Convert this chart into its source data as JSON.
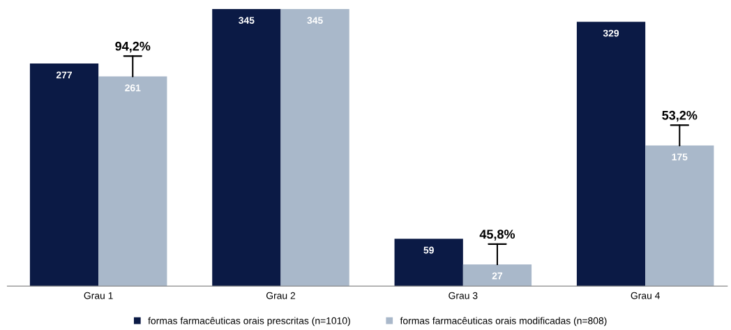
{
  "chart_data": {
    "type": "bar",
    "categories": [
      "Grau 1",
      "Grau 2",
      "Grau 3",
      "Grau 4"
    ],
    "series": [
      {
        "name": "formas farmacêuticas orais prescritas (n=1010)",
        "color": "#0b1a45",
        "values": [
          277,
          345,
          59,
          329
        ]
      },
      {
        "name": "formas farmacêuticas orais modificadas (n=808)",
        "color": "#a9b8ca",
        "values": [
          261,
          345,
          27,
          175
        ]
      }
    ],
    "data_labels": true,
    "annotations": [
      {
        "text": "94,2%",
        "x": "Grau 1",
        "y": 261
      },
      {
        "text": "45,8%",
        "x": "Grau 3",
        "y": 27
      },
      {
        "text": "53,2%",
        "x": "Grau 4",
        "y": 175
      }
    ],
    "legend": "bottom",
    "grid": false
  }
}
